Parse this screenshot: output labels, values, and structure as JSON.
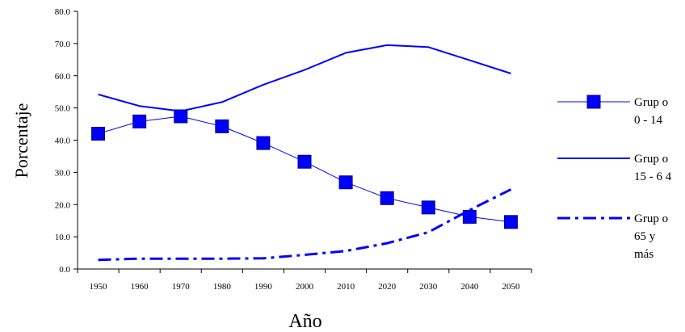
{
  "chart_data": {
    "type": "line",
    "xlabel": "Año",
    "ylabel": "Porcentaje",
    "x": [
      "1950",
      "1960",
      "1970",
      "1980",
      "1990",
      "2000",
      "2010",
      "2020",
      "2030",
      "2040",
      "2050"
    ],
    "ylim": [
      0,
      80
    ],
    "yticks": [
      "0.0",
      "10.0",
      "20.0",
      "30.0",
      "40.0",
      "50.0",
      "60.0",
      "70.0",
      "80.0"
    ],
    "grid": false,
    "legend_position": "right",
    "series": [
      {
        "name": "Grupo 0 - 14",
        "legend_lines": [
          "Grup o",
          "0  - 14"
        ],
        "style": "solid-thin-square-markers",
        "values": [
          42.0,
          45.8,
          47.4,
          44.3,
          39.1,
          33.3,
          26.9,
          22.0,
          19.1,
          16.2,
          14.6
        ]
      },
      {
        "name": "Grupo 15 - 64",
        "legend_lines": [
          "Grup o",
          "15 - 6 4"
        ],
        "style": "solid",
        "values": [
          54.2,
          50.6,
          49.0,
          51.8,
          57.2,
          61.8,
          67.1,
          69.5,
          68.9,
          64.8,
          60.7
        ]
      },
      {
        "name": "Grupo 65 y más",
        "legend_lines": [
          "Grup o",
          "65 y",
          "más"
        ],
        "style": "dash-dot",
        "values": [
          2.8,
          3.2,
          3.2,
          3.2,
          3.3,
          4.4,
          5.6,
          8.0,
          11.4,
          18.3,
          24.7
        ]
      }
    ],
    "colors": {
      "series": "#0000ff",
      "marker_stroke": "#000080",
      "axis": "#000000"
    }
  }
}
